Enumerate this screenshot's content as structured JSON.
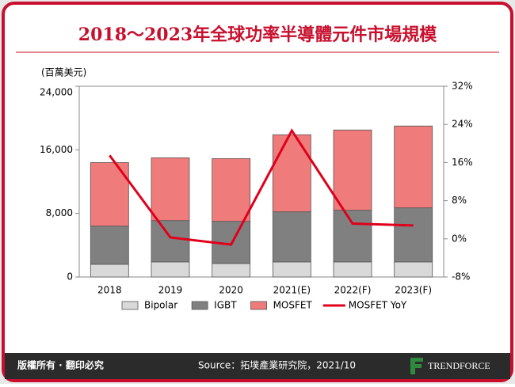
{
  "chart_data": {
    "type": "bar",
    "stacked": true,
    "title": "2018～2023年全球功率半導體元件市場規模",
    "y_label": "(百萬美元)",
    "categories": [
      "2018",
      "2019",
      "2020",
      "2021(E)",
      "2022(F)",
      "2023(F)"
    ],
    "series": [
      {
        "name": "Bipolar",
        "color": "#d9d9d9",
        "values": [
          1600,
          1900,
          1700,
          1900,
          1900,
          1900
        ]
      },
      {
        "name": "IGBT",
        "color": "#808080",
        "values": [
          4800,
          5200,
          5300,
          6300,
          6500,
          6800
        ]
      },
      {
        "name": "MOSFET",
        "color": "#ef7b7b",
        "values": [
          8000,
          7900,
          7900,
          9700,
          10100,
          10300
        ]
      },
      {
        "name": "MOSFET YoY",
        "type": "line",
        "axis": "y2",
        "color": "#e0001b",
        "values": [
          17.5,
          0.3,
          -1.2,
          22.7,
          3.2,
          2.8
        ]
      }
    ],
    "ylim": [
      0,
      24000
    ],
    "yticks": [
      0,
      {
        "value": 8000,
        "label": "8,000"
      },
      {
        "value": 16000,
        "label": "16,000"
      },
      {
        "value": 24000,
        "label": "24,000"
      }
    ],
    "y2lim": [
      -8,
      32
    ],
    "y2ticks": [
      {
        "value": -8,
        "label": "-8%"
      },
      {
        "value": 0,
        "label": "0%"
      },
      {
        "value": 8,
        "label": "8%"
      },
      {
        "value": 16,
        "label": "16%"
      },
      {
        "value": 24,
        "label": "24%"
      },
      {
        "value": 32,
        "label": "32%"
      }
    ],
    "legend": "bottom"
  },
  "footer": {
    "copyright": "版權所有 · 翻印必究",
    "source": "Source：拓墣產業研究院，2021/10",
    "brand": "TRENDFORCE"
  }
}
